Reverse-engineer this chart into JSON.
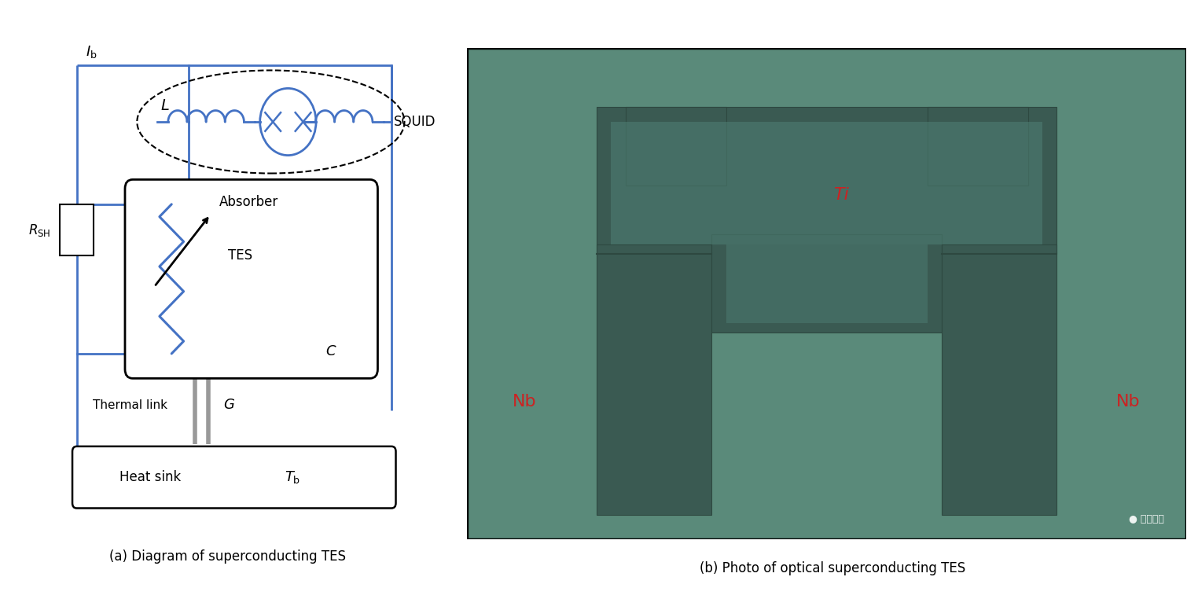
{
  "fig_width": 15.24,
  "fig_height": 7.62,
  "bg_color": "#ffffff",
  "blue_color": "#4472c4",
  "caption_a": "(a) Diagram of superconducting TES",
  "caption_b": "(b) Photo of optical superconducting TES",
  "photo_bg": "#5a8a7a",
  "photo_dark": "#3a5a52",
  "photo_medium": "#4a7268",
  "photo_darker": "#2e4840",
  "label_Ti": "Ti",
  "label_Nb_left": "Nb",
  "label_Nb_right": "Nb",
  "label_color": "#cc2222",
  "black": "#000000",
  "gray": "#888888",
  "lw_main": 2.0,
  "lw_thin": 1.5
}
